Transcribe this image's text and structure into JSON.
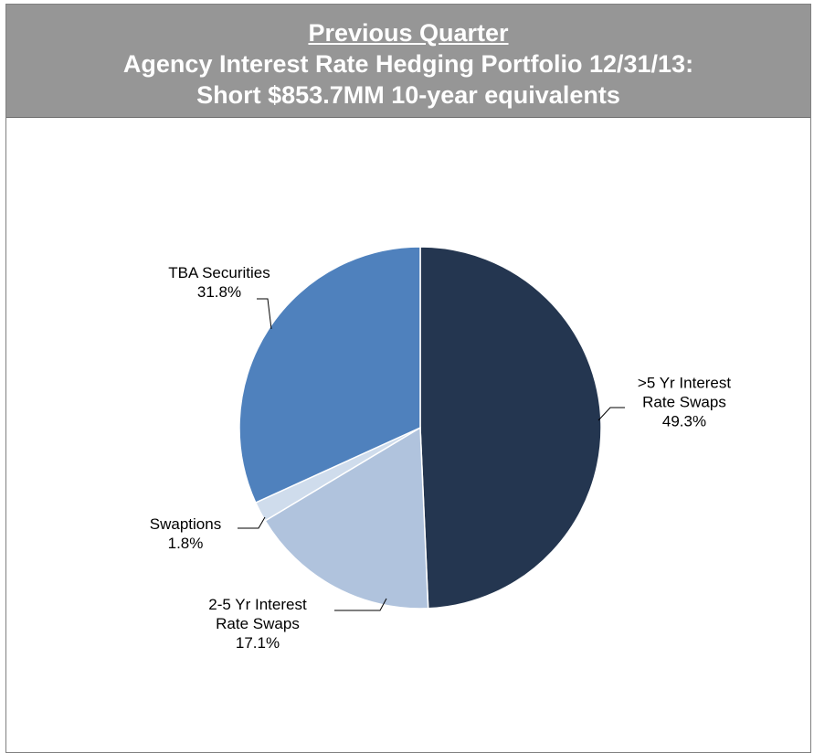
{
  "header": {
    "supertitle": "Previous Quarter",
    "title_line1": "Agency Interest Rate Hedging Portfolio 12/31/13:",
    "title_line2": "Short $853.7MM 10-year equivalents"
  },
  "chart_data": {
    "type": "pie",
    "title": "Agency Interest Rate Hedging Portfolio 12/31/13: Short $853.7MM 10-year equivalents",
    "unit": "%",
    "start_angle_deg": 0,
    "direction": "clockwise",
    "slices": [
      {
        "label_lines": [
          ">5 Yr Interest",
          "Rate Swaps"
        ],
        "value_text": "49.3%",
        "value": 49.3,
        "color": "#243650"
      },
      {
        "label_lines": [
          "2-5 Yr Interest",
          "Rate Swaps"
        ],
        "value_text": "17.1%",
        "value": 17.1,
        "color": "#b0c3dd"
      },
      {
        "label_lines": [
          "Swaptions"
        ],
        "value_text": "1.8%",
        "value": 1.8,
        "color": "#cfdcec"
      },
      {
        "label_lines": [
          "TBA Securities"
        ],
        "value_text": "31.8%",
        "value": 31.8,
        "color": "#4f81bd"
      }
    ]
  }
}
